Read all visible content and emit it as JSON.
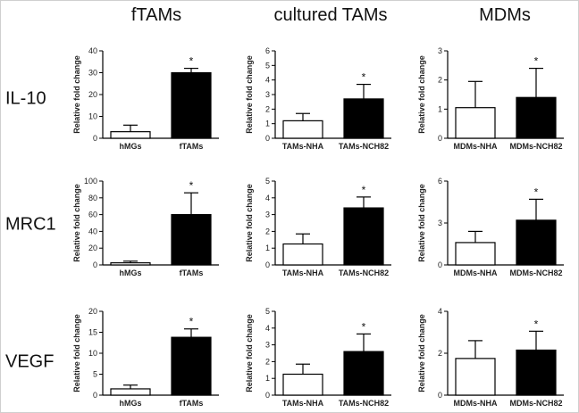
{
  "figure": {
    "column_titles": [
      "fTAMs",
      "cultured TAMs",
      "MDMs"
    ],
    "row_titles": [
      "IL-10",
      "MRC1",
      "VEGF"
    ]
  },
  "chart_data": [
    {
      "type": "bar",
      "row": "IL-10",
      "column": "fTAMs",
      "ylabel": "Relative fold change",
      "ylim": [
        0,
        40
      ],
      "yticks": [
        0,
        10,
        20,
        30,
        40
      ],
      "categories": [
        "hMGs",
        "fTAMs"
      ],
      "values": [
        3,
        30
      ],
      "errors": [
        3,
        2
      ],
      "fills": [
        "#ffffff",
        "#000000"
      ],
      "significance": [
        "",
        "*"
      ]
    },
    {
      "type": "bar",
      "row": "IL-10",
      "column": "cultured TAMs",
      "ylabel": "Relative fold change",
      "ylim": [
        0,
        6
      ],
      "yticks": [
        0,
        1,
        2,
        3,
        4,
        5,
        6
      ],
      "categories": [
        "TAMs-NHA",
        "TAMs-NCH82"
      ],
      "values": [
        1.2,
        2.7
      ],
      "errors": [
        0.5,
        1.0
      ],
      "fills": [
        "#ffffff",
        "#000000"
      ],
      "significance": [
        "",
        "*"
      ]
    },
    {
      "type": "bar",
      "row": "IL-10",
      "column": "MDMs",
      "ylabel": "Relative fold change",
      "ylim": [
        0,
        3
      ],
      "yticks": [
        0,
        1,
        2,
        3
      ],
      "categories": [
        "MDMs-NHA",
        "MDMs-NCH82"
      ],
      "values": [
        1.05,
        1.4
      ],
      "errors": [
        0.9,
        1.0
      ],
      "fills": [
        "#ffffff",
        "#000000"
      ],
      "significance": [
        "",
        "*"
      ]
    },
    {
      "type": "bar",
      "row": "MRC1",
      "column": "fTAMs",
      "ylabel": "Relative fold change",
      "ylim": [
        0,
        100
      ],
      "yticks": [
        0,
        20,
        40,
        60,
        80,
        100
      ],
      "categories": [
        "hMGs",
        "fTAMs"
      ],
      "values": [
        2.5,
        60
      ],
      "errors": [
        2,
        26
      ],
      "fills": [
        "#ffffff",
        "#000000"
      ],
      "significance": [
        "",
        "*"
      ]
    },
    {
      "type": "bar",
      "row": "MRC1",
      "column": "cultured TAMs",
      "ylabel": "Relative fold change",
      "ylim": [
        0,
        5
      ],
      "yticks": [
        0,
        1,
        2,
        3,
        4,
        5
      ],
      "categories": [
        "TAMs-NHA",
        "TAMs-NCH82"
      ],
      "values": [
        1.25,
        3.4
      ],
      "errors": [
        0.6,
        0.65
      ],
      "fills": [
        "#ffffff",
        "#000000"
      ],
      "significance": [
        "",
        "*"
      ]
    },
    {
      "type": "bar",
      "row": "MRC1",
      "column": "MDMs",
      "ylabel": "Relative fold change",
      "ylim": [
        0,
        6
      ],
      "yticks": [
        0,
        3,
        6
      ],
      "categories": [
        "MDMs-NHA",
        "MDMs-NCH82"
      ],
      "values": [
        1.6,
        3.2
      ],
      "errors": [
        0.8,
        1.5
      ],
      "fills": [
        "#ffffff",
        "#000000"
      ],
      "significance": [
        "",
        "*"
      ]
    },
    {
      "type": "bar",
      "row": "VEGF",
      "column": "fTAMs",
      "ylabel": "Relative fold change",
      "ylim": [
        0,
        20
      ],
      "yticks": [
        0,
        5,
        10,
        15,
        20
      ],
      "categories": [
        "hMGs",
        "fTAMs"
      ],
      "values": [
        1.5,
        13.8
      ],
      "errors": [
        0.9,
        2.0
      ],
      "fills": [
        "#ffffff",
        "#000000"
      ],
      "significance": [
        "",
        "*"
      ]
    },
    {
      "type": "bar",
      "row": "VEGF",
      "column": "cultured TAMs",
      "ylabel": "Relative fold change",
      "ylim": [
        0,
        5
      ],
      "yticks": [
        0,
        1,
        2,
        3,
        4,
        5
      ],
      "categories": [
        "TAMs-NHA",
        "TAMs-NCH82"
      ],
      "values": [
        1.25,
        2.6
      ],
      "errors": [
        0.6,
        1.05
      ],
      "fills": [
        "#ffffff",
        "#000000"
      ],
      "significance": [
        "",
        "*"
      ]
    },
    {
      "type": "bar",
      "row": "VEGF",
      "column": "MDMs",
      "ylabel": "Relative fold change",
      "ylim": [
        0,
        4
      ],
      "yticks": [
        0,
        2,
        4
      ],
      "categories": [
        "MDMs-NHA",
        "MDMs-NCH82"
      ],
      "values": [
        1.75,
        2.15
      ],
      "errors": [
        0.85,
        0.9
      ],
      "fills": [
        "#ffffff",
        "#000000"
      ],
      "significance": [
        "",
        "*"
      ]
    }
  ]
}
